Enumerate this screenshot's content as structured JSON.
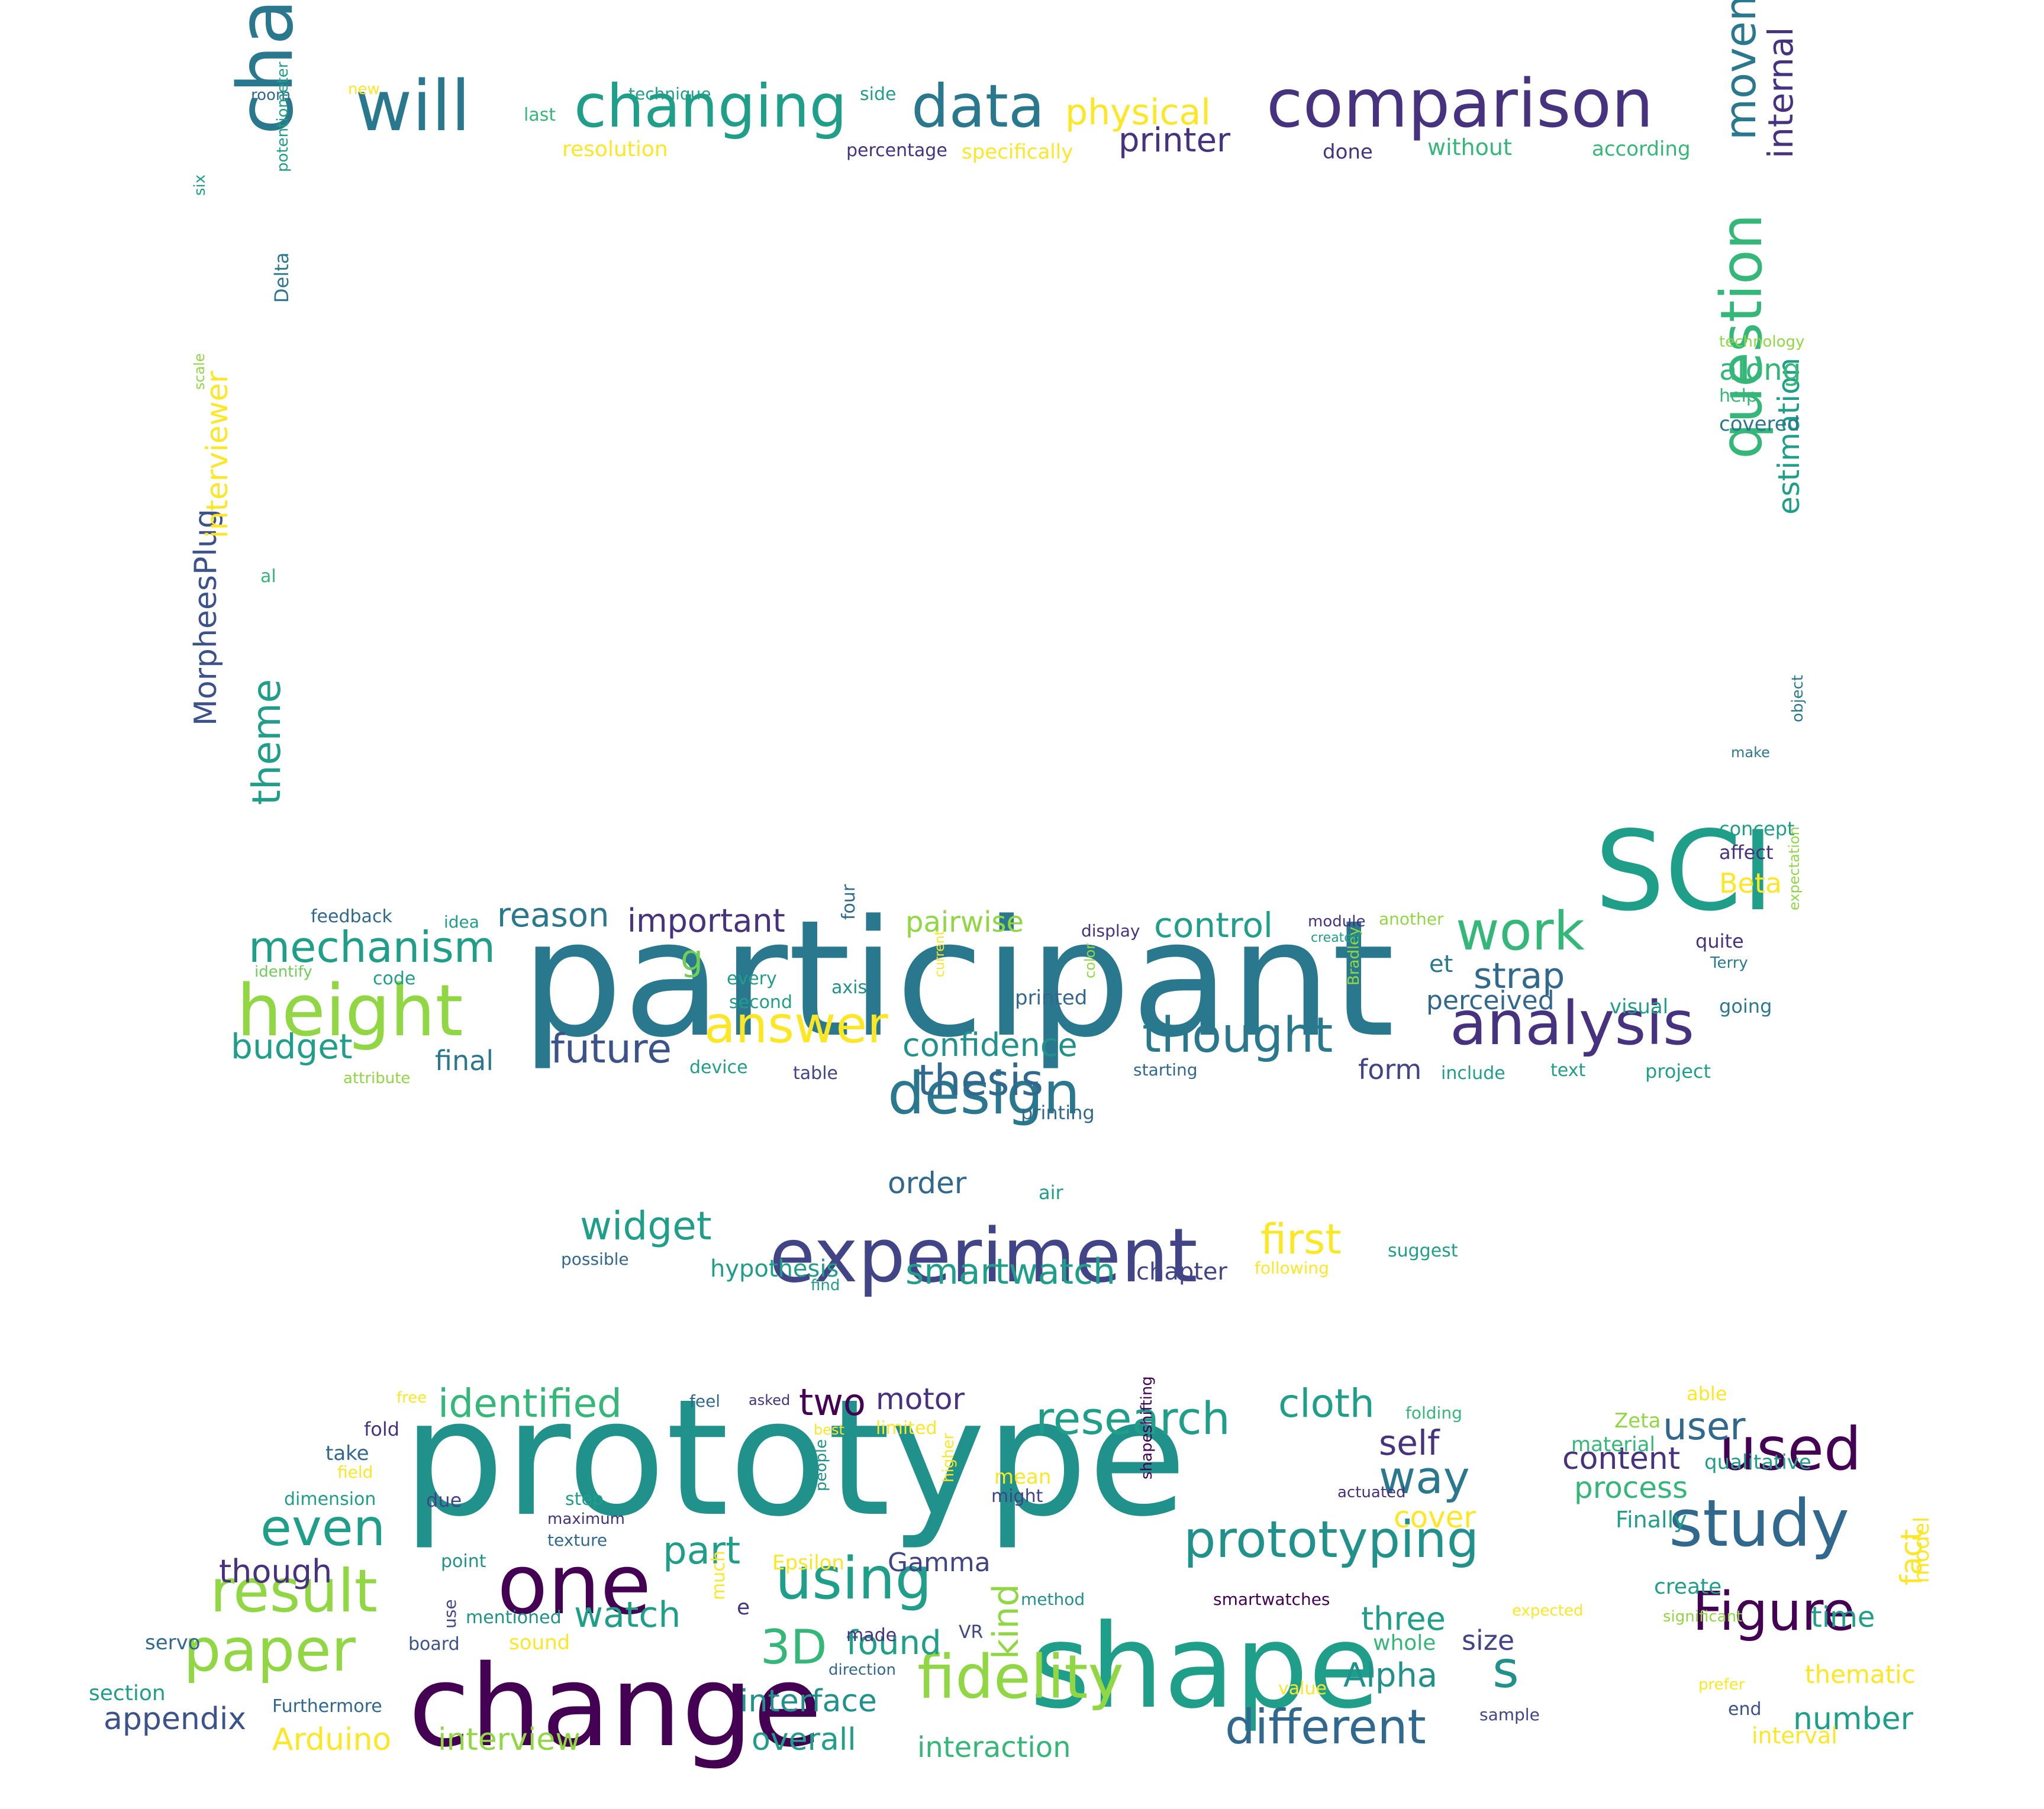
{
  "palette": {
    "deep": "#440154",
    "indigo": "#3b528b",
    "blue": "#31688e",
    "teal": "#21918c",
    "green": "#35b779",
    "lime": "#90d743",
    "yellow": "#fde725",
    "purple": "#46327e",
    "navy": "#414487",
    "cyan": "#2a788e",
    "sea": "#1f9e89",
    "mint": "#6ece58"
  },
  "words": [
    {
      "text": "participant"
    },
    {
      "text": "prototype"
    },
    {
      "text": "SCI"
    },
    {
      "text": "change"
    },
    {
      "text": "shape"
    },
    {
      "text": "one"
    },
    {
      "text": "experiment"
    },
    {
      "text": "characteristic"
    },
    {
      "text": "height"
    },
    {
      "text": "will"
    },
    {
      "text": "comparison"
    },
    {
      "text": "changing"
    },
    {
      "text": "data"
    },
    {
      "text": "question"
    },
    {
      "text": "analysis"
    },
    {
      "text": "fidelity"
    },
    {
      "text": "paper"
    },
    {
      "text": "result"
    },
    {
      "text": "using"
    },
    {
      "text": "prototyping"
    },
    {
      "text": "design"
    },
    {
      "text": "study"
    },
    {
      "text": "Figure"
    },
    {
      "text": "used"
    },
    {
      "text": "movement"
    },
    {
      "text": "work"
    },
    {
      "text": "answer"
    },
    {
      "text": "thought"
    },
    {
      "text": "mechanism"
    },
    {
      "text": "theme"
    },
    {
      "text": "even"
    },
    {
      "text": "different"
    },
    {
      "text": "research"
    },
    {
      "text": "identified"
    },
    {
      "text": "cloth"
    },
    {
      "text": "way"
    },
    {
      "text": "widget"
    },
    {
      "text": "first"
    },
    {
      "text": "thesis"
    },
    {
      "text": "future"
    },
    {
      "text": "smartwatch"
    },
    {
      "text": "strap"
    },
    {
      "text": "internal"
    },
    {
      "text": "estimation"
    },
    {
      "text": "MorpheesPlug"
    },
    {
      "text": "interviewer"
    },
    {
      "text": "physical"
    },
    {
      "text": "printer"
    },
    {
      "text": "budget"
    },
    {
      "text": "confidence"
    },
    {
      "text": "reason"
    },
    {
      "text": "important"
    },
    {
      "text": "control"
    },
    {
      "text": "pairwise"
    },
    {
      "text": "order"
    },
    {
      "text": "s"
    },
    {
      "text": "3D"
    },
    {
      "text": "part"
    },
    {
      "text": "two"
    },
    {
      "text": "motor"
    },
    {
      "text": "self"
    },
    {
      "text": "cover"
    },
    {
      "text": "content"
    },
    {
      "text": "user"
    },
    {
      "text": "process"
    },
    {
      "text": "watch"
    },
    {
      "text": "found"
    },
    {
      "text": "kind"
    },
    {
      "text": "interface"
    },
    {
      "text": "Arduino"
    },
    {
      "text": "interview"
    },
    {
      "text": "appendix"
    },
    {
      "text": "overall"
    },
    {
      "text": "interaction"
    },
    {
      "text": "Alpha"
    },
    {
      "text": "three"
    },
    {
      "text": "size"
    },
    {
      "text": "Gamma"
    },
    {
      "text": "number"
    },
    {
      "text": "time"
    },
    {
      "text": "thematic"
    },
    {
      "text": "fact"
    },
    {
      "text": "though"
    },
    {
      "text": "along"
    },
    {
      "text": "Beta"
    },
    {
      "text": "final"
    },
    {
      "text": "form"
    },
    {
      "text": "perceived"
    },
    {
      "text": "hypothesis"
    },
    {
      "text": "chapter"
    },
    {
      "text": "g"
    },
    {
      "text": "et"
    },
    {
      "text": "resolution"
    },
    {
      "text": "specifically"
    },
    {
      "text": "percentage"
    },
    {
      "text": "done"
    },
    {
      "text": "without"
    },
    {
      "text": "according"
    },
    {
      "text": "last"
    },
    {
      "text": "technique"
    },
    {
      "text": "side"
    },
    {
      "text": "new"
    },
    {
      "text": "room"
    },
    {
      "text": "six"
    },
    {
      "text": "potentiometer"
    },
    {
      "text": "Delta"
    },
    {
      "text": "scale"
    },
    {
      "text": "al"
    },
    {
      "text": "technology"
    },
    {
      "text": "help"
    },
    {
      "text": "covered"
    },
    {
      "text": "object"
    },
    {
      "text": "make"
    },
    {
      "text": "concept"
    },
    {
      "text": "affect"
    },
    {
      "text": "expectation"
    },
    {
      "text": "quite"
    },
    {
      "text": "Terry"
    },
    {
      "text": "going"
    },
    {
      "text": "visual"
    },
    {
      "text": "text"
    },
    {
      "text": "project"
    },
    {
      "text": "include"
    },
    {
      "text": "Bradley"
    },
    {
      "text": "another"
    },
    {
      "text": "module"
    },
    {
      "text": "created"
    },
    {
      "text": "display"
    },
    {
      "text": "color"
    },
    {
      "text": "printed"
    },
    {
      "text": "current"
    },
    {
      "text": "starting"
    },
    {
      "text": "printing"
    },
    {
      "text": "air"
    },
    {
      "text": "suggest"
    },
    {
      "text": "following"
    },
    {
      "text": "possible"
    },
    {
      "text": "find"
    },
    {
      "text": "feedback"
    },
    {
      "text": "idea"
    },
    {
      "text": "identify"
    },
    {
      "text": "code"
    },
    {
      "text": "every"
    },
    {
      "text": "second"
    },
    {
      "text": "axis"
    },
    {
      "text": "four"
    },
    {
      "text": "device"
    },
    {
      "text": "table"
    },
    {
      "text": "attribute"
    },
    {
      "text": "free"
    },
    {
      "text": "feel"
    },
    {
      "text": "asked"
    },
    {
      "text": "best"
    },
    {
      "text": "limited"
    },
    {
      "text": "folding"
    },
    {
      "text": "fold"
    },
    {
      "text": "take"
    },
    {
      "text": "field"
    },
    {
      "text": "dimension"
    },
    {
      "text": "due"
    },
    {
      "text": "step"
    },
    {
      "text": "maximum"
    },
    {
      "text": "texture"
    },
    {
      "text": "people"
    },
    {
      "text": "higher"
    },
    {
      "text": "mean"
    },
    {
      "text": "might"
    },
    {
      "text": "shapeshifting"
    },
    {
      "text": "actuated"
    },
    {
      "text": "point"
    },
    {
      "text": "Epsilon"
    },
    {
      "text": "use"
    },
    {
      "text": "mentioned"
    },
    {
      "text": "sound"
    },
    {
      "text": "board"
    },
    {
      "text": "much"
    },
    {
      "text": "e"
    },
    {
      "text": "method"
    },
    {
      "text": "smartwatches"
    },
    {
      "text": "expected"
    },
    {
      "text": "whole"
    },
    {
      "text": "made"
    },
    {
      "text": "VR"
    },
    {
      "text": "direction"
    },
    {
      "text": "value"
    },
    {
      "text": "sample"
    },
    {
      "text": "servo"
    },
    {
      "text": "section"
    },
    {
      "text": "Furthermore"
    },
    {
      "text": "able"
    },
    {
      "text": "Zeta"
    },
    {
      "text": "material"
    },
    {
      "text": "qualitative"
    },
    {
      "text": "Finally"
    },
    {
      "text": "model"
    },
    {
      "text": "create"
    },
    {
      "text": "significant"
    },
    {
      "text": "prefer"
    },
    {
      "text": "end"
    },
    {
      "text": "interval"
    }
  ]
}
